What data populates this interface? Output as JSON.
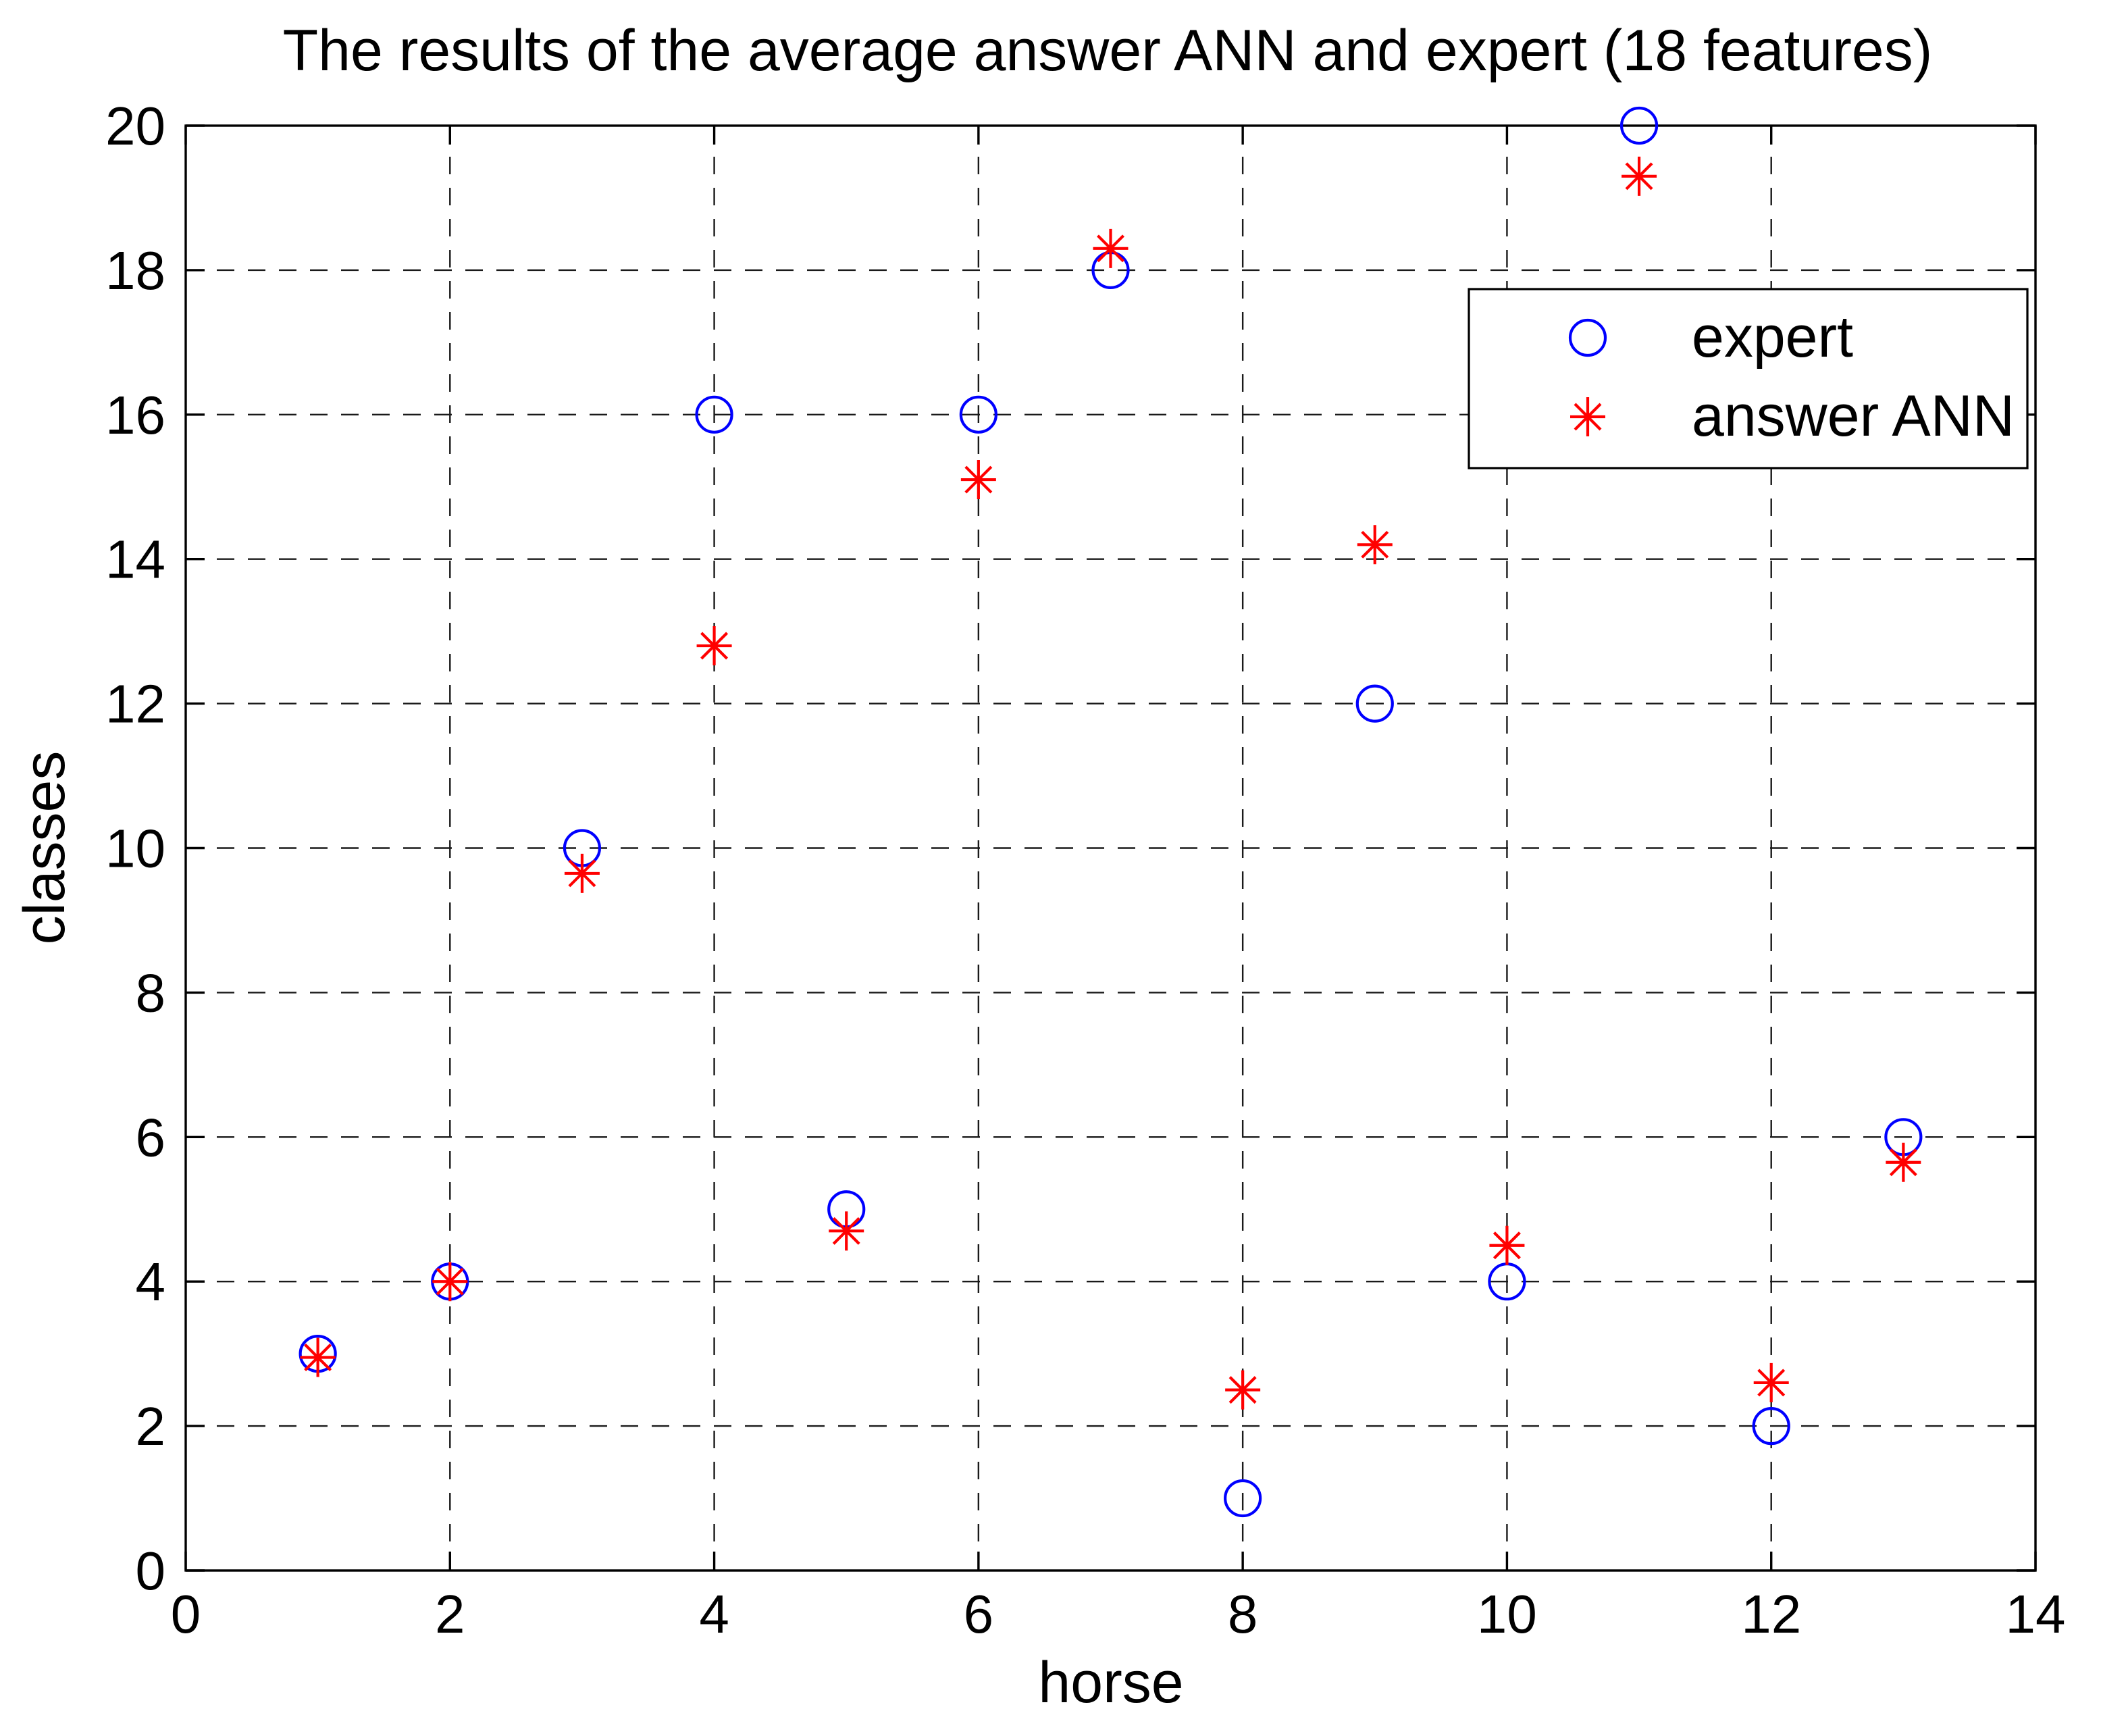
{
  "chart_data": {
    "type": "scatter",
    "title": "The results of the average answer ANN and expert (18 features)",
    "xlabel": "horse",
    "ylabel": "classes",
    "xlim": [
      0,
      14
    ],
    "ylim": [
      0,
      20
    ],
    "xticks": [
      0,
      2,
      4,
      6,
      8,
      10,
      12,
      14
    ],
    "yticks": [
      0,
      2,
      4,
      6,
      8,
      10,
      12,
      14,
      16,
      18,
      20
    ],
    "grid": "dashed-both-axes",
    "x": [
      1,
      2,
      3,
      4,
      5,
      6,
      7,
      8,
      9,
      10,
      11,
      12,
      13
    ],
    "series": [
      {
        "name": "expert",
        "marker": "circle",
        "color": "#0000FF",
        "values": [
          3,
          4,
          10,
          16,
          5,
          16,
          18,
          1,
          12,
          4,
          20,
          2,
          6
        ]
      },
      {
        "name": "answer ANN",
        "marker": "asterisk",
        "color": "#FF0000",
        "values": [
          2.95,
          4.0,
          9.65,
          12.8,
          4.7,
          15.1,
          18.3,
          2.5,
          14.2,
          4.5,
          19.3,
          2.6,
          5.65
        ]
      }
    ],
    "legend": {
      "position": "top-right",
      "entries": [
        "expert",
        "answer ANN"
      ]
    }
  }
}
